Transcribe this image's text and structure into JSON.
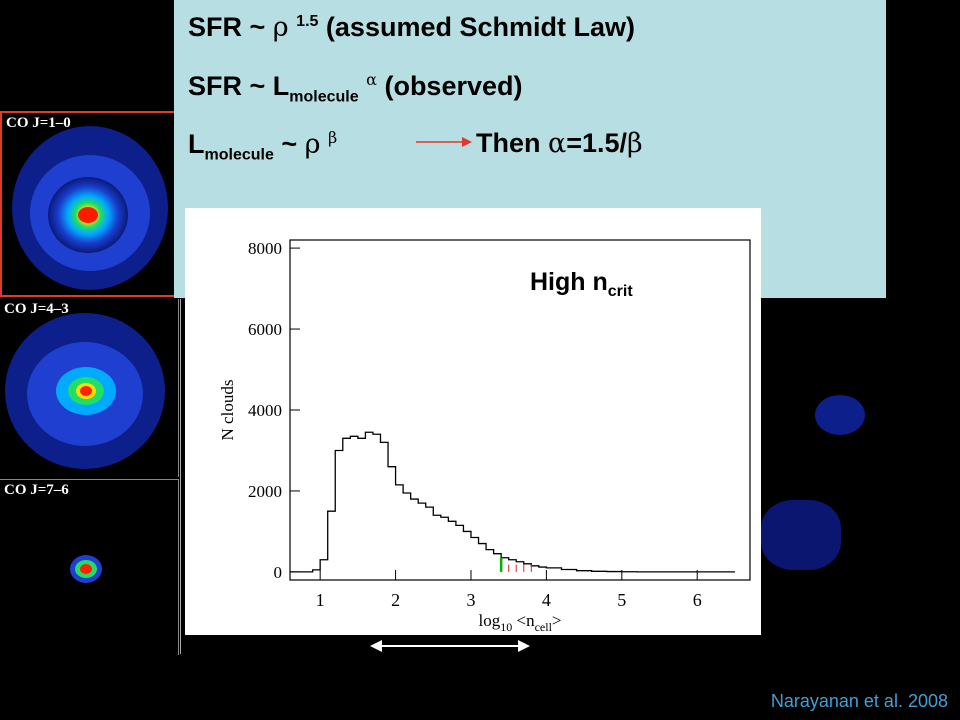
{
  "formulas": {
    "line1": {
      "prefix": "SFR ~ ",
      "symbol": "ρ",
      "sup": "1.5",
      "suffix": " (assumed Schmidt Law)"
    },
    "line2": {
      "prefix": "SFR ~ L",
      "sub": "molecule",
      "symbol": "α",
      "suffix": " (observed)"
    },
    "line3": {
      "prefix": "L",
      "sub": "molecule",
      "mid": " ~ ",
      "symbol1": "ρ",
      "symbol2": "β",
      "then_text": "Then ",
      "alpha": "α",
      "eq": "=1.5/",
      "beta": "β"
    }
  },
  "panels": [
    {
      "label": "CO J=1–0"
    },
    {
      "label": "CO J=4–3"
    },
    {
      "label": "CO J=7–6"
    }
  ],
  "colors": {
    "box_bg": "#b7dfe3",
    "highlight_border": "#e23a2a",
    "arrow": "#e23a2a",
    "citation": "#3fa0d6"
  },
  "chart_data": {
    "type": "histogram",
    "annotation": {
      "text": "High n",
      "sub": "crit"
    },
    "xlabel": {
      "prefix": "log",
      "sub": "10",
      "suffix": " <n",
      "sub2": "cell",
      "end": ">"
    },
    "ylabel": "N clouds",
    "xlim": [
      0.6,
      6.7
    ],
    "ylim": [
      -200,
      8200
    ],
    "xticks": [
      1,
      2,
      3,
      4,
      5,
      6
    ],
    "yticks": [
      0,
      2000,
      4000,
      6000,
      8000
    ],
    "x": [
      0.6,
      0.8,
      0.9,
      1.0,
      1.1,
      1.2,
      1.3,
      1.4,
      1.5,
      1.6,
      1.7,
      1.8,
      1.9,
      2.0,
      2.1,
      2.2,
      2.3,
      2.4,
      2.5,
      2.6,
      2.7,
      2.8,
      2.9,
      3.0,
      3.1,
      3.2,
      3.3,
      3.4,
      3.5,
      3.6,
      3.7,
      3.8,
      3.9,
      4.0,
      4.2,
      4.4,
      4.6,
      4.8,
      5.0,
      5.2,
      5.5
    ],
    "values": [
      0,
      0,
      50,
      300,
      1500,
      3000,
      3300,
      3350,
      3300,
      3450,
      3400,
      3200,
      2600,
      2150,
      1950,
      1800,
      1700,
      1600,
      1400,
      1350,
      1250,
      1150,
      1000,
      850,
      700,
      550,
      450,
      350,
      300,
      250,
      200,
      150,
      120,
      100,
      60,
      30,
      15,
      8,
      3,
      1,
      0
    ],
    "markers": [
      {
        "x": 3.4,
        "color": "#00b000"
      },
      {
        "x": 3.5,
        "color": "#d22"
      },
      {
        "x": 3.6,
        "color": "#d22"
      },
      {
        "x": 3.7,
        "color": "#d22"
      },
      {
        "x": 3.8,
        "color": "#d22"
      }
    ]
  },
  "citation": "Narayanan et al. 2008"
}
